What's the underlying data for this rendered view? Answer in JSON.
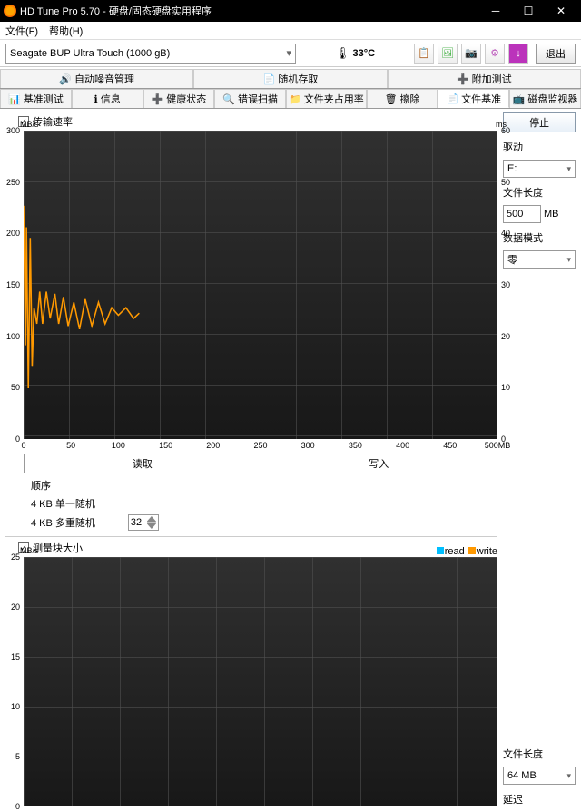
{
  "window": {
    "title": "HD Tune Pro 5.70 - 硬盘/固态硬盘实用程序"
  },
  "menu": {
    "file": "文件(F)",
    "help": "帮助(H)"
  },
  "toolbar": {
    "drive": "Seagate BUP Ultra Touch (1000 gB)",
    "temp": "33°C",
    "exit": "退出"
  },
  "tabs1": {
    "auto": "自动噪音管理",
    "random": "随机存取",
    "extra": "附加测试"
  },
  "tabs2": {
    "bench": "基准测试",
    "info": "信息",
    "health": "健康状态",
    "scan": "错误扫描",
    "folder": "文件夹占用率",
    "erase": "擦除",
    "filebench": "文件基准",
    "monitor": "磁盘监视器"
  },
  "chart1": {
    "chk": "传输速率",
    "y_unit": "MB/s",
    "yr_unit": "ms",
    "y_ticks": [
      300,
      250,
      200,
      150,
      100,
      50,
      0
    ],
    "yr_ticks": [
      60,
      50,
      40,
      30,
      20,
      10,
      0
    ],
    "x_ticks": [
      0,
      50,
      100,
      150,
      200,
      250,
      300,
      350,
      400,
      450,
      "500MB"
    ],
    "read": "读取",
    "write": "写入",
    "opts": {
      "seq": "顺序",
      "rnd1": "4 KB 单一随机",
      "rndm": "4 KB 多重随机",
      "depth": "32"
    },
    "line_color": "#ff9900",
    "data": [
      [
        0,
        230
      ],
      [
        2,
        100
      ],
      [
        3,
        210
      ],
      [
        5,
        60
      ],
      [
        7,
        200
      ],
      [
        9,
        80
      ],
      [
        11,
        135
      ],
      [
        14,
        120
      ],
      [
        17,
        150
      ],
      [
        20,
        120
      ],
      [
        24,
        150
      ],
      [
        28,
        125
      ],
      [
        33,
        148
      ],
      [
        37,
        120
      ],
      [
        42,
        145
      ],
      [
        47,
        118
      ],
      [
        53,
        140
      ],
      [
        59,
        115
      ],
      [
        65,
        143
      ],
      [
        72,
        118
      ],
      [
        79,
        140
      ],
      [
        86,
        120
      ],
      [
        93,
        135
      ],
      [
        100,
        128
      ],
      [
        108,
        135
      ],
      [
        116,
        125
      ],
      [
        122,
        130
      ]
    ]
  },
  "chart2": {
    "chk": "测量块大小",
    "y_unit": "MB/s",
    "y_ticks": [
      25,
      20,
      15,
      10,
      5,
      0
    ],
    "legend": {
      "read": "read",
      "write": "write",
      "read_color": "#00bfff",
      "write_color": "#ff9900"
    }
  },
  "side": {
    "stop": "停止",
    "drive_lbl": "驱动",
    "drive_val": "E:",
    "flen_lbl": "文件长度",
    "flen_val": "500",
    "flen_unit": "MB",
    "mode_lbl": "数据模式",
    "mode_val": "零",
    "flen2_lbl": "文件长度",
    "flen2_val": "64 MB",
    "delay_lbl": "延迟"
  }
}
